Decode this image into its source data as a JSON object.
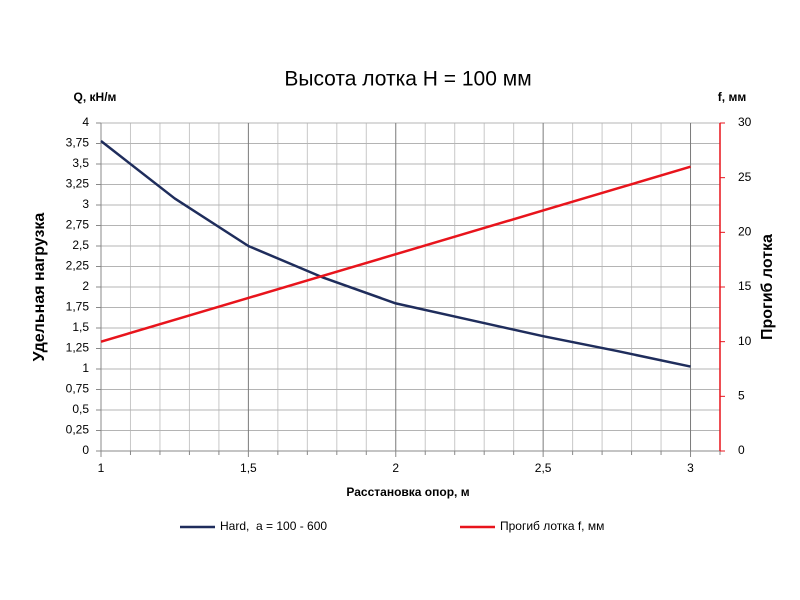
{
  "chart_data": {
    "type": "line",
    "title": "Высота лотка H = 100 мм",
    "x_label": "Расстановка опор, м",
    "y_label": "Удельная нагрузка",
    "y_unit_label": "Q, кН/м",
    "y2_label": "Прогиб лотка",
    "y2_unit_label": "f, мм",
    "x": [
      1,
      1.25,
      1.5,
      1.75,
      2,
      2.25,
      2.5,
      2.75,
      3
    ],
    "series": [
      {
        "name": "Hard,  a = 100 - 600",
        "color": "#1f2d5c",
        "values": [
          3.78,
          3.08,
          2.5,
          2.12,
          1.8,
          1.6,
          1.4,
          1.22,
          1.03
        ]
      },
      {
        "name": "Прогиб лотка f, мм",
        "color": "#e8141c",
        "axis": "y2",
        "values": [
          10,
          12,
          14,
          16,
          18,
          20,
          22,
          24,
          26
        ]
      }
    ],
    "xlim": [
      1,
      3.1
    ],
    "xticks": [
      1,
      {
        "value": 1.5,
        "label": "1,5"
      },
      2,
      {
        "value": 2.5,
        "label": "2,5"
      },
      3
    ],
    "xminorticks": [
      1.1,
      1.2,
      1.3,
      1.4,
      1.6,
      1.7,
      1.8,
      1.9,
      2.1,
      2.2,
      2.3,
      2.4,
      2.6,
      2.7,
      2.8,
      2.9,
      3.1
    ],
    "ylim": [
      0,
      4
    ],
    "yticks": [
      0,
      {
        "value": 0.25,
        "label": "0,25"
      },
      {
        "value": 0.5,
        "label": "0,5"
      },
      {
        "value": 0.75,
        "label": "0,75"
      },
      1,
      {
        "value": 1.25,
        "label": "1,25"
      },
      {
        "value": 1.5,
        "label": "1,5"
      },
      {
        "value": 1.75,
        "label": "1,75"
      },
      2,
      {
        "value": 2.25,
        "label": "2,25"
      },
      {
        "value": 2.5,
        "label": "2,5"
      },
      {
        "value": 2.75,
        "label": "2,75"
      },
      3,
      {
        "value": 3.25,
        "label": "3,25"
      },
      {
        "value": 3.5,
        "label": "3,5"
      },
      {
        "value": 3.75,
        "label": "3,75"
      },
      4
    ],
    "y2lim": [
      0,
      30
    ],
    "y2ticks": [
      0,
      5,
      10,
      15,
      20,
      25,
      30
    ],
    "y2_axis_color": "#e8141c",
    "grid": true,
    "legend": "bottom"
  }
}
